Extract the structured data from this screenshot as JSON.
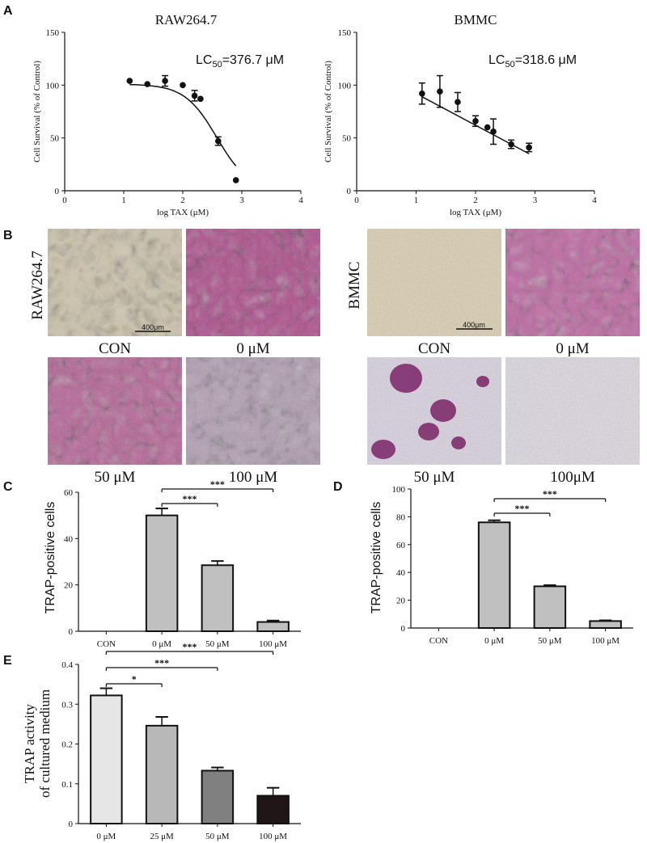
{
  "panel_letters": [
    "A",
    "B",
    "C",
    "D",
    "E"
  ],
  "chart_data": [
    {
      "type": "scatter",
      "id": "A-left",
      "title": "RAW264.7",
      "annotation": "LC50=376.7 μM",
      "xlabel": "log TAX (μM)",
      "ylabel": "Cell Survival (% of Control)",
      "xlim": [
        0,
        4
      ],
      "ylim": [
        0,
        150
      ],
      "xticks": [
        "0",
        "1",
        "2",
        "3",
        "4"
      ],
      "yticks": [
        "0",
        "50",
        "100",
        "150"
      ],
      "points": [
        {
          "x": 1.1,
          "y": 104,
          "err": 0
        },
        {
          "x": 1.4,
          "y": 101,
          "err": 0
        },
        {
          "x": 1.7,
          "y": 104,
          "err": 5
        },
        {
          "x": 2.0,
          "y": 100,
          "err": 0
        },
        {
          "x": 2.2,
          "y": 90,
          "err": 5
        },
        {
          "x": 2.3,
          "y": 87,
          "err": 0
        },
        {
          "x": 2.6,
          "y": 47,
          "err": 4
        },
        {
          "x": 2.9,
          "y": 10,
          "err": 0
        }
      ],
      "fit": {
        "type": "logistic",
        "top": 101,
        "logEC50": 2.576,
        "hill": 1.6
      }
    },
    {
      "type": "scatter",
      "id": "A-right",
      "title": "BMMC",
      "annotation": "LC50=318.6 μM",
      "xlabel": "log TAX (μM)",
      "ylabel": "Cell Survival (% of Control)",
      "xlim": [
        0,
        4
      ],
      "ylim": [
        0,
        150
      ],
      "xticks": [
        "0",
        "1",
        "2",
        "3",
        "4"
      ],
      "yticks": [
        "0",
        "50",
        "100",
        "150"
      ],
      "points": [
        {
          "x": 1.1,
          "y": 92,
          "err": 10
        },
        {
          "x": 1.4,
          "y": 94,
          "err": 15
        },
        {
          "x": 1.7,
          "y": 84,
          "err": 9
        },
        {
          "x": 2.0,
          "y": 66,
          "err": 5
        },
        {
          "x": 2.2,
          "y": 60,
          "err": 0
        },
        {
          "x": 2.3,
          "y": 56,
          "err": 12
        },
        {
          "x": 2.6,
          "y": 44,
          "err": 4
        },
        {
          "x": 2.9,
          "y": 41,
          "err": 4
        }
      ],
      "fit": {
        "type": "linear",
        "from": [
          1.1,
          89
        ],
        "to": [
          2.9,
          35
        ]
      }
    },
    {
      "type": "bar",
      "id": "C",
      "ylabel": "TRAP-positive cells",
      "categories": [
        "CON",
        "0 μM",
        "50 μM",
        "100 μM"
      ],
      "values": [
        0,
        50,
        28.5,
        4
      ],
      "errors": [
        0,
        3,
        1.8,
        0.6
      ],
      "ylim": [
        0,
        60
      ],
      "yticks": [
        "0",
        "20",
        "40",
        "60"
      ],
      "fill": "#c0c0c0",
      "significance": [
        {
          "from": 1,
          "to": 2,
          "label": "***"
        },
        {
          "from": 1,
          "to": 3,
          "label": "***"
        }
      ]
    },
    {
      "type": "bar",
      "id": "D",
      "ylabel": "TRAP-positive cells",
      "categories": [
        "CON",
        "0 μM",
        "50 μM",
        "100 μM"
      ],
      "values": [
        0,
        76,
        30,
        5
      ],
      "errors": [
        0,
        1.5,
        0.8,
        0.5
      ],
      "ylim": [
        0,
        100
      ],
      "yticks": [
        "0",
        "20",
        "40",
        "60",
        "80",
        "100"
      ],
      "fill": "#c0c0c0",
      "significance": [
        {
          "from": 1,
          "to": 2,
          "label": "***"
        },
        {
          "from": 1,
          "to": 3,
          "label": "***"
        }
      ]
    },
    {
      "type": "bar",
      "id": "E",
      "ylabel_lines": [
        "TRAP activity",
        "of cultured medium"
      ],
      "categories": [
        "0 μM",
        "25 μM",
        "50 μM",
        "100 μM"
      ],
      "values": [
        0.322,
        0.246,
        0.133,
        0.07
      ],
      "errors": [
        0.018,
        0.022,
        0.008,
        0.02
      ],
      "ylim": [
        0,
        0.4
      ],
      "yticks": [
        "0",
        "0.1",
        "0.2",
        "0.3",
        "0.4"
      ],
      "fills": [
        "#e6e6e6",
        "#b8b8b8",
        "#808080",
        "#1f1717"
      ],
      "significance": [
        {
          "from": 0,
          "to": 1,
          "label": "*"
        },
        {
          "from": 0,
          "to": 2,
          "label": "***"
        },
        {
          "from": 0,
          "to": 3,
          "label": "***"
        }
      ]
    }
  ],
  "micrographs": {
    "left": {
      "side_label": "RAW264.7",
      "scale_label": "400μm",
      "captions": [
        "CON",
        "0 μM",
        "50 μM",
        "100 μM"
      ],
      "tints": [
        "#cfc6ad",
        "#b0508f",
        "#b96499",
        "#b4a0b4"
      ]
    },
    "right": {
      "side_label": "BMMC",
      "scale_label": "400μm",
      "captions": [
        "CON",
        "0 μM",
        "50 μM",
        "100μM"
      ],
      "tints": [
        "#d9cdb0",
        "#c06aa5",
        "#d8d0df",
        "#dcd6e0"
      ]
    }
  }
}
